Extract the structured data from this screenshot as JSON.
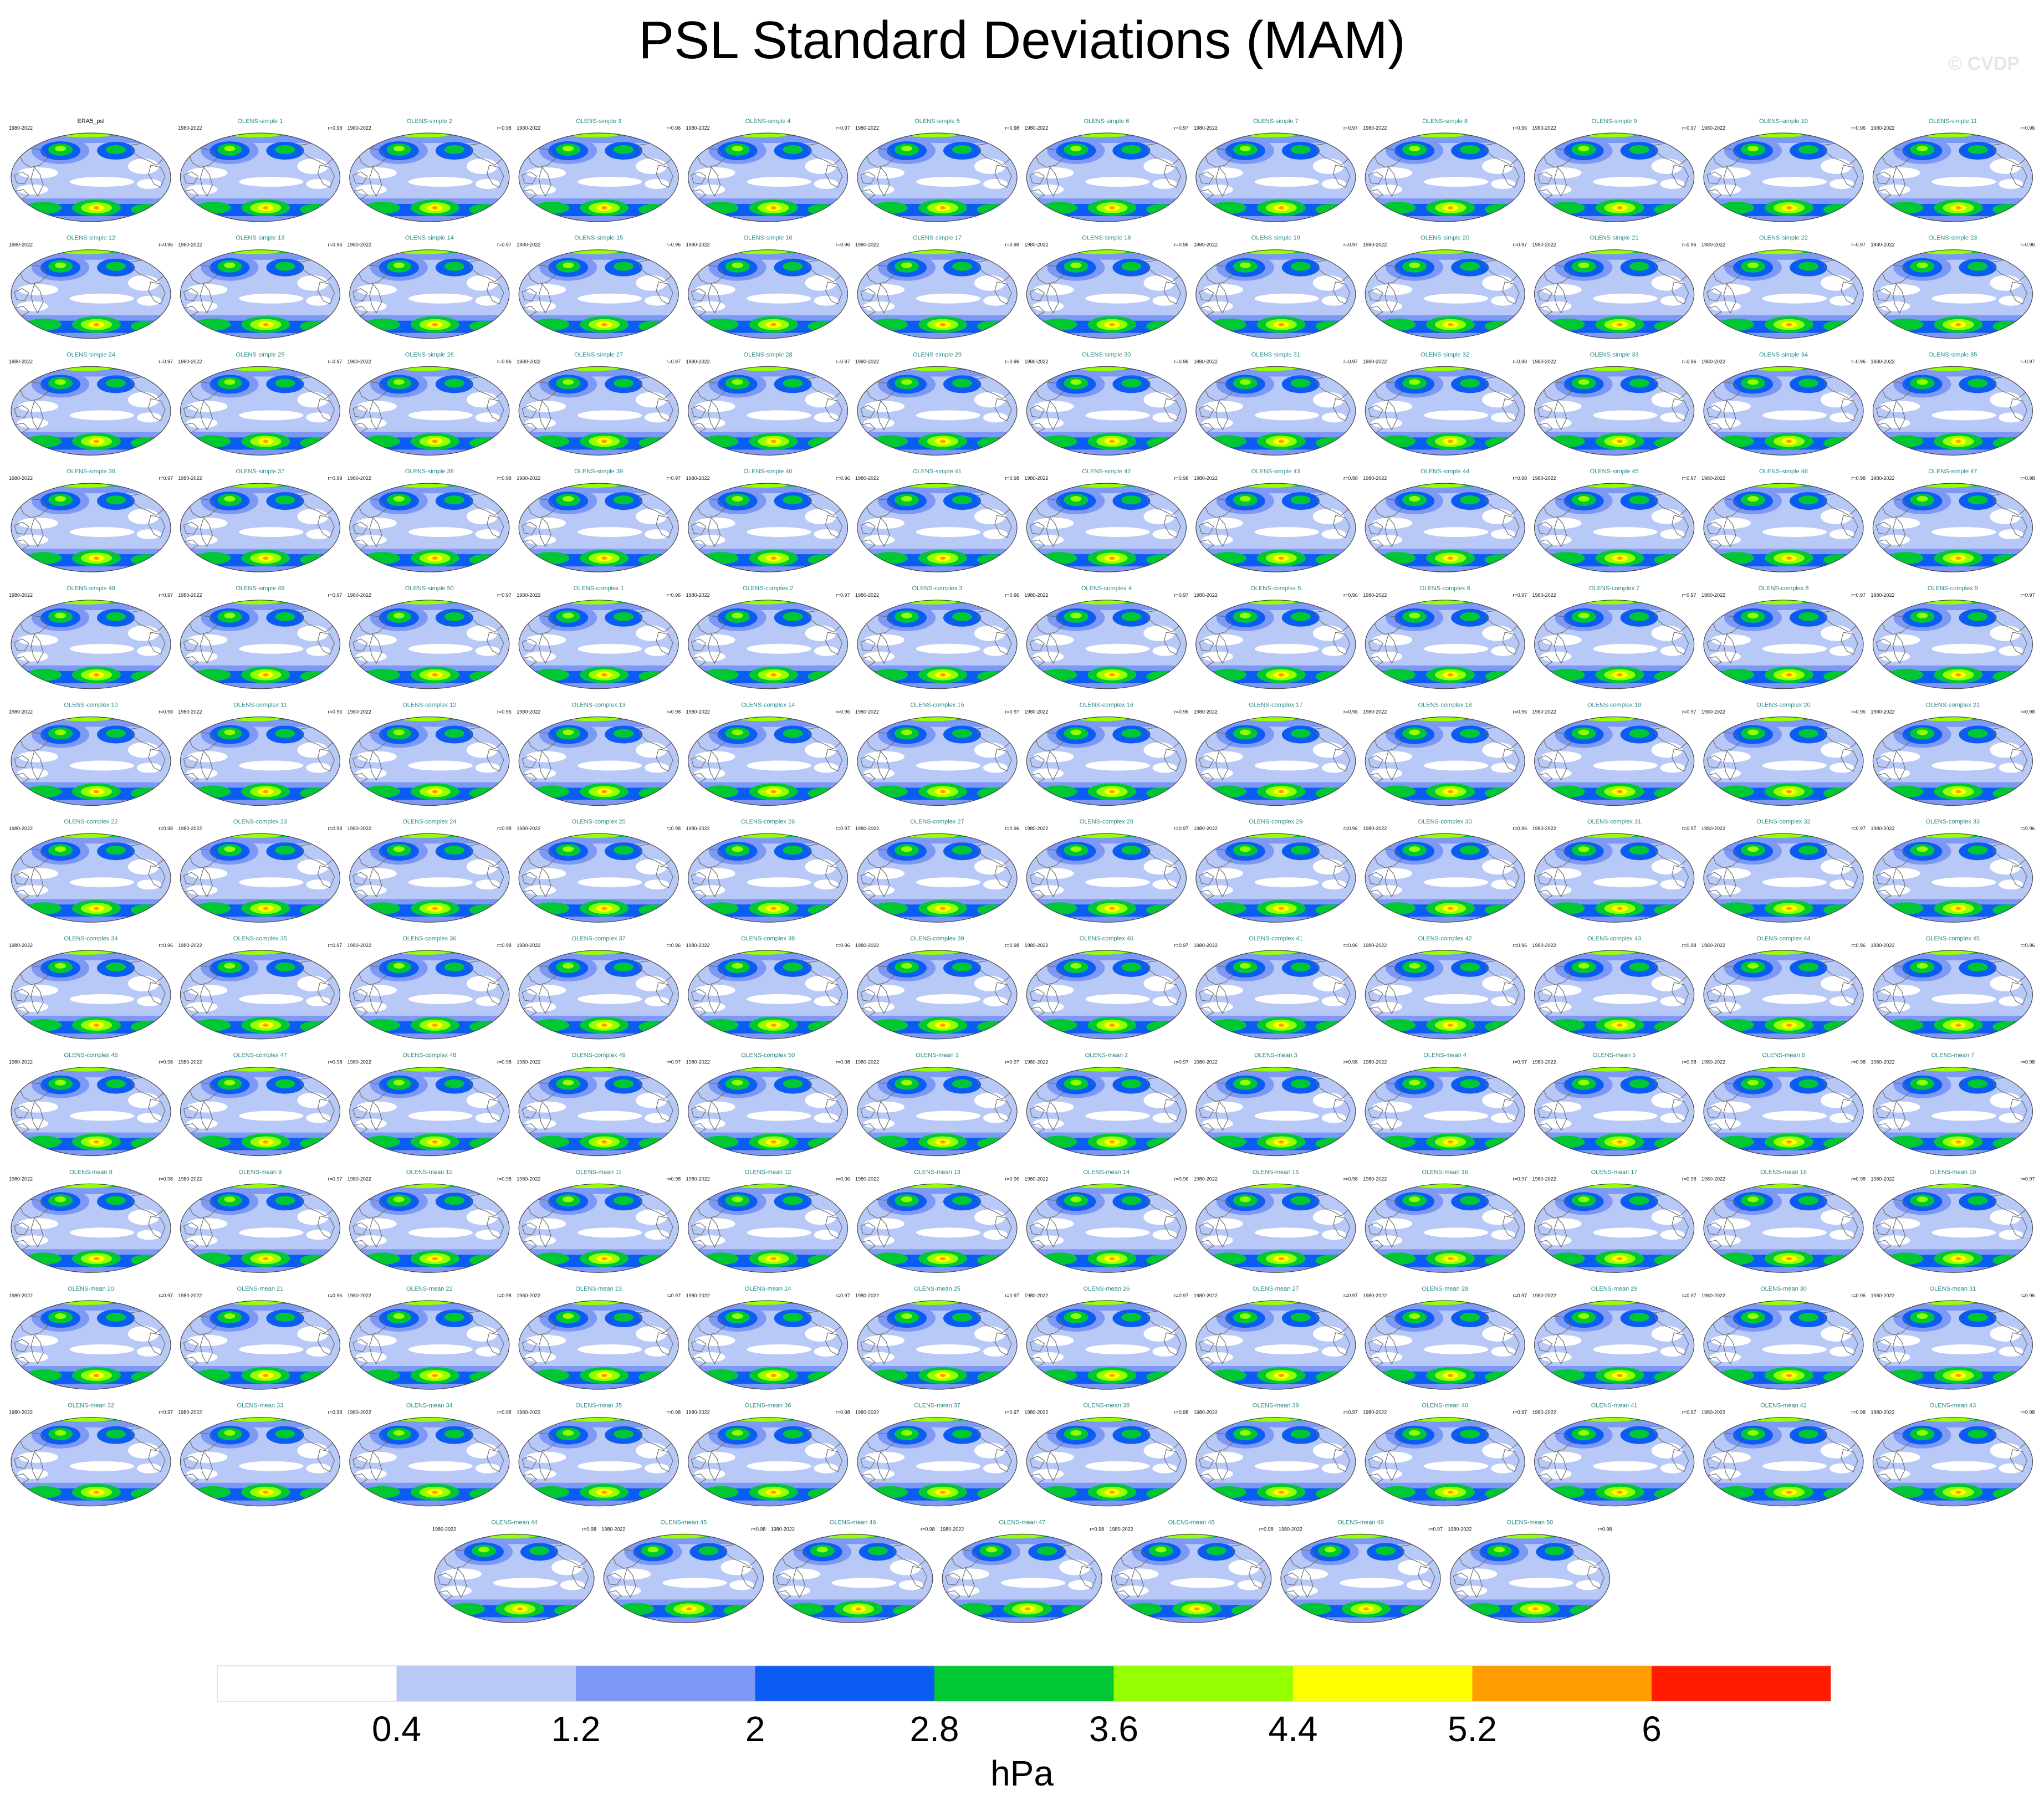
{
  "title": "PSL Standard Deviations (MAM)",
  "watermark": "© CVDP",
  "chart_data": {
    "type": "heatmap",
    "title": "PSL Standard Deviations (MAM)",
    "colorbar": {
      "levels": [
        "0.4",
        "1.2",
        "2",
        "2.8",
        "3.6",
        "4.4",
        "5.2",
        "6"
      ],
      "colors": [
        "#ffffff",
        "#b8c9f7",
        "#7d98f5",
        "#0b5cf2",
        "#00c832",
        "#96ff00",
        "#ffff00",
        "#ff9d00",
        "#ff1a00"
      ],
      "units": "hPa"
    },
    "panels": [
      {
        "title": "ERA5_psl",
        "years": "1980-2022",
        "r": ""
      },
      {
        "title": "OLENS-simple 1",
        "years": "1980-2022",
        "r": "r=0.98"
      },
      {
        "title": "OLENS-simple 2",
        "years": "1980-2022",
        "r": "r=0.98"
      },
      {
        "title": "OLENS-simple 3",
        "years": "1980-2022",
        "r": "r=0.96"
      },
      {
        "title": "OLENS-simple 4",
        "years": "1980-2022",
        "r": "r=0.97"
      },
      {
        "title": "OLENS-simple 5",
        "years": "1980-2022",
        "r": "r=0.98"
      },
      {
        "title": "OLENS-simple 6",
        "years": "1980-2022",
        "r": "r=0.97"
      },
      {
        "title": "OLENS-simple 7",
        "years": "1980-2022",
        "r": "r=0.97"
      },
      {
        "title": "OLENS-simple 8",
        "years": "1980-2022",
        "r": "r=0.96"
      },
      {
        "title": "OLENS-simple 9",
        "years": "1980-2022",
        "r": "r=0.97"
      },
      {
        "title": "OLENS-simple 10",
        "years": "1980-2022",
        "r": "r=0.96"
      },
      {
        "title": "OLENS-simple 11",
        "years": "1980-2022",
        "r": "r=0.96"
      },
      {
        "title": "OLENS-simple 12",
        "years": "1980-2022",
        "r": "r=0.96"
      },
      {
        "title": "OLENS-simple 13",
        "years": "1980-2022",
        "r": "r=0.96"
      },
      {
        "title": "OLENS-simple 14",
        "years": "1980-2022",
        "r": "r=0.97"
      },
      {
        "title": "OLENS-simple 15",
        "years": "1980-2022",
        "r": "r=0.96"
      },
      {
        "title": "OLENS-simple 16",
        "years": "1980-2022",
        "r": "r=0.96"
      },
      {
        "title": "OLENS-simple 17",
        "years": "1980-2022",
        "r": "r=0.98"
      },
      {
        "title": "OLENS-simple 18",
        "years": "1980-2022",
        "r": "r=0.96"
      },
      {
        "title": "OLENS-simple 19",
        "years": "1980-2022",
        "r": "r=0.97"
      },
      {
        "title": "OLENS-simple 20",
        "years": "1980-2022",
        "r": "r=0.97"
      },
      {
        "title": "OLENS-simple 21",
        "years": "1980-2022",
        "r": "r=0.96"
      },
      {
        "title": "OLENS-simple 22",
        "years": "1980-2022",
        "r": "r=0.97"
      },
      {
        "title": "OLENS-simple 23",
        "years": "1980-2022",
        "r": "r=0.96"
      },
      {
        "title": "OLENS-simple 24",
        "years": "1980-2022",
        "r": "r=0.97"
      },
      {
        "title": "OLENS-simple 25",
        "years": "1980-2022",
        "r": "r=0.97"
      },
      {
        "title": "OLENS-simple 26",
        "years": "1980-2022",
        "r": "r=0.96"
      },
      {
        "title": "OLENS-simple 27",
        "years": "1980-2022",
        "r": "r=0.97"
      },
      {
        "title": "OLENS-simple 28",
        "years": "1980-2022",
        "r": "r=0.97"
      },
      {
        "title": "OLENS-simple 29",
        "years": "1980-2022",
        "r": "r=0.96"
      },
      {
        "title": "OLENS-simple 30",
        "years": "1980-2022",
        "r": "r=0.98"
      },
      {
        "title": "OLENS-simple 31",
        "years": "1980-2022",
        "r": "r=0.97"
      },
      {
        "title": "OLENS-simple 32",
        "years": "1980-2022",
        "r": "r=0.98"
      },
      {
        "title": "OLENS-simple 33",
        "years": "1980-2022",
        "r": "r=0.96"
      },
      {
        "title": "OLENS-simple 34",
        "years": "1980-2022",
        "r": "r=0.96"
      },
      {
        "title": "OLENS-simple 35",
        "years": "1980-2022",
        "r": "r=0.97"
      },
      {
        "title": "OLENS-simple 36",
        "years": "1980-2022",
        "r": "r=0.97"
      },
      {
        "title": "OLENS-simple 37",
        "years": "1980-2022",
        "r": "r=0.99"
      },
      {
        "title": "OLENS-simple 38",
        "years": "1980-2022",
        "r": "r=0.98"
      },
      {
        "title": "OLENS-simple 39",
        "years": "1980-2022",
        "r": "r=0.97"
      },
      {
        "title": "OLENS-simple 40",
        "years": "1980-2022",
        "r": "r=0.96"
      },
      {
        "title": "OLENS-simple 41",
        "years": "1980-2022",
        "r": "r=0.98"
      },
      {
        "title": "OLENS-simple 42",
        "years": "1980-2022",
        "r": "r=0.98"
      },
      {
        "title": "OLENS-simple 43",
        "years": "1980-2022",
        "r": "r=0.98"
      },
      {
        "title": "OLENS-simple 44",
        "years": "1980-2022",
        "r": "r=0.98"
      },
      {
        "title": "OLENS-simple 45",
        "years": "1980-2022",
        "r": "r=0.97"
      },
      {
        "title": "OLENS-simple 46",
        "years": "1980-2022",
        "r": "r=0.98"
      },
      {
        "title": "OLENS-simple 47",
        "years": "1980-2022",
        "r": "r=0.98"
      },
      {
        "title": "OLENS-simple 48",
        "years": "1980-2022",
        "r": "r=0.97"
      },
      {
        "title": "OLENS-simple 49",
        "years": "1980-2022",
        "r": "r=0.97"
      },
      {
        "title": "OLENS-simple 50",
        "years": "1980-2022",
        "r": "r=0.97"
      },
      {
        "title": "OLENS-complex 1",
        "years": "1980-2022",
        "r": "r=0.96"
      },
      {
        "title": "OLENS-complex 2",
        "years": "1980-2022",
        "r": "r=0.97"
      },
      {
        "title": "OLENS-complex 3",
        "years": "1980-2022",
        "r": "r=0.96"
      },
      {
        "title": "OLENS-complex 4",
        "years": "1980-2022",
        "r": "r=0.97"
      },
      {
        "title": "OLENS-complex 5",
        "years": "1980-2022",
        "r": "r=0.96"
      },
      {
        "title": "OLENS-complex 6",
        "years": "1980-2022",
        "r": "r=0.97"
      },
      {
        "title": "OLENS-complex 7",
        "years": "1980-2022",
        "r": "r=0.97"
      },
      {
        "title": "OLENS-complex 8",
        "years": "1980-2022",
        "r": "r=0.97"
      },
      {
        "title": "OLENS-complex 9",
        "years": "1980-2022",
        "r": "r=0.97"
      },
      {
        "title": "OLENS-complex 10",
        "years": "1980-2022",
        "r": "r=0.98"
      },
      {
        "title": "OLENS-complex 11",
        "years": "1980-2022",
        "r": "r=0.96"
      },
      {
        "title": "OLENS-complex 12",
        "years": "1980-2022",
        "r": "r=0.96"
      },
      {
        "title": "OLENS-complex 13",
        "years": "1980-2022",
        "r": "r=0.98"
      },
      {
        "title": "OLENS-complex 14",
        "years": "1980-2022",
        "r": "r=0.96"
      },
      {
        "title": "OLENS-complex 15",
        "years": "1980-2022",
        "r": "r=0.97"
      },
      {
        "title": "OLENS-complex 16",
        "years": "1980-2022",
        "r": "r=0.96"
      },
      {
        "title": "OLENS-complex 17",
        "years": "1980-2022",
        "r": "r=0.98"
      },
      {
        "title": "OLENS-complex 18",
        "years": "1980-2022",
        "r": "r=0.96"
      },
      {
        "title": "OLENS-complex 19",
        "years": "1980-2022",
        "r": "r=0.97"
      },
      {
        "title": "OLENS-complex 20",
        "years": "1980-2022",
        "r": "r=0.96"
      },
      {
        "title": "OLENS-complex 21",
        "years": "1980-2022",
        "r": "r=0.98"
      },
      {
        "title": "OLENS-complex 22",
        "years": "1980-2022",
        "r": "r=0.98"
      },
      {
        "title": "OLENS-complex 23",
        "years": "1980-2022",
        "r": "r=0.98"
      },
      {
        "title": "OLENS-complex 24",
        "years": "1980-2022",
        "r": "r=0.98"
      },
      {
        "title": "OLENS-complex 25",
        "years": "1980-2022",
        "r": "r=0.98"
      },
      {
        "title": "OLENS-complex 26",
        "years": "1980-2022",
        "r": "r=0.97"
      },
      {
        "title": "OLENS-complex 27",
        "years": "1980-2022",
        "r": "r=0.96"
      },
      {
        "title": "OLENS-complex 28",
        "years": "1980-2022",
        "r": "r=0.97"
      },
      {
        "title": "OLENS-complex 29",
        "years": "1980-2022",
        "r": "r=0.96"
      },
      {
        "title": "OLENS-complex 30",
        "years": "1980-2022",
        "r": "r=0.96"
      },
      {
        "title": "OLENS-complex 31",
        "years": "1980-2022",
        "r": "r=0.97"
      },
      {
        "title": "OLENS-complex 32",
        "years": "1980-2022",
        "r": "r=0.97"
      },
      {
        "title": "OLENS-complex 33",
        "years": "1980-2022",
        "r": "r=0.96"
      },
      {
        "title": "OLENS-complex 34",
        "years": "1980-2022",
        "r": "r=0.96"
      },
      {
        "title": "OLENS-complex 35",
        "years": "1980-2022",
        "r": "r=0.97"
      },
      {
        "title": "OLENS-complex 36",
        "years": "1980-2022",
        "r": "r=0.98"
      },
      {
        "title": "OLENS-complex 37",
        "years": "1980-2022",
        "r": "r=0.96"
      },
      {
        "title": "OLENS-complex 38",
        "years": "1980-2022",
        "r": "r=0.96"
      },
      {
        "title": "OLENS-complex 39",
        "years": "1980-2022",
        "r": "r=0.98"
      },
      {
        "title": "OLENS-complex 40",
        "years": "1980-2022",
        "r": "r=0.97"
      },
      {
        "title": "OLENS-complex 41",
        "years": "1980-2022",
        "r": "r=0.96"
      },
      {
        "title": "OLENS-complex 42",
        "years": "1980-2022",
        "r": "r=0.96"
      },
      {
        "title": "OLENS-complex 43",
        "years": "1980-2022",
        "r": "r=0.98"
      },
      {
        "title": "OLENS-complex 44",
        "years": "1980-2022",
        "r": "r=0.96"
      },
      {
        "title": "OLENS-complex 45",
        "years": "1980-2022",
        "r": "r=0.96"
      },
      {
        "title": "OLENS-complex 46",
        "years": "1980-2022",
        "r": "r=0.98"
      },
      {
        "title": "OLENS-complex 47",
        "years": "1980-2022",
        "r": "r=0.98"
      },
      {
        "title": "OLENS-complex 48",
        "years": "1980-2022",
        "r": "r=0.98"
      },
      {
        "title": "OLENS-complex 49",
        "years": "1980-2022",
        "r": "r=0.97"
      },
      {
        "title": "OLENS-complex 50",
        "years": "1980-2022",
        "r": "r=0.98"
      },
      {
        "title": "OLENS-mean 1",
        "years": "1980-2022",
        "r": "r=0.97"
      },
      {
        "title": "OLENS-mean 2",
        "years": "1980-2022",
        "r": "r=0.97"
      },
      {
        "title": "OLENS-mean 3",
        "years": "1980-2022",
        "r": "r=0.98"
      },
      {
        "title": "OLENS-mean 4",
        "years": "1980-2022",
        "r": "r=0.97"
      },
      {
        "title": "OLENS-mean 5",
        "years": "1980-2022",
        "r": "r=0.98"
      },
      {
        "title": "OLENS-mean 6",
        "years": "1980-2022",
        "r": "r=0.98"
      },
      {
        "title": "OLENS-mean 7",
        "years": "1980-2022",
        "r": "r=0.98"
      },
      {
        "title": "OLENS-mean 8",
        "years": "1980-2022",
        "r": "r=0.98"
      },
      {
        "title": "OLENS-mean 9",
        "years": "1980-2022",
        "r": "r=0.97"
      },
      {
        "title": "OLENS-mean 10",
        "years": "1980-2022",
        "r": "r=0.98"
      },
      {
        "title": "OLENS-mean 11",
        "years": "1980-2022",
        "r": "r=0.98"
      },
      {
        "title": "OLENS-mean 12",
        "years": "1980-2022",
        "r": "r=0.96"
      },
      {
        "title": "OLENS-mean 13",
        "years": "1980-2022",
        "r": "r=0.96"
      },
      {
        "title": "OLENS-mean 14",
        "years": "1980-2022",
        "r": "r=0.96"
      },
      {
        "title": "OLENS-mean 15",
        "years": "1980-2022",
        "r": "r=0.98"
      },
      {
        "title": "OLENS-mean 16",
        "years": "1980-2022",
        "r": "r=0.97"
      },
      {
        "title": "OLENS-mean 17",
        "years": "1980-2022",
        "r": "r=0.98"
      },
      {
        "title": "OLENS-mean 18",
        "years": "1980-2022",
        "r": "r=0.98"
      },
      {
        "title": "OLENS-mean 19",
        "years": "1980-2022",
        "r": "r=0.97"
      },
      {
        "title": "OLENS-mean 20",
        "years": "1980-2022",
        "r": "r=0.97"
      },
      {
        "title": "OLENS-mean 21",
        "years": "1980-2022",
        "r": "r=0.96"
      },
      {
        "title": "OLENS-mean 22",
        "years": "1980-2022",
        "r": "r=0.98"
      },
      {
        "title": "OLENS-mean 23",
        "years": "1980-2022",
        "r": "r=0.97"
      },
      {
        "title": "OLENS-mean 24",
        "years": "1980-2022",
        "r": "r=0.97"
      },
      {
        "title": "OLENS-mean 25",
        "years": "1980-2022",
        "r": "r=0.97"
      },
      {
        "title": "OLENS-mean 26",
        "years": "1980-2022",
        "r": "r=0.97"
      },
      {
        "title": "OLENS-mean 27",
        "years": "1980-2022",
        "r": "r=0.97"
      },
      {
        "title": "OLENS-mean 28",
        "years": "1980-2022",
        "r": "r=0.97"
      },
      {
        "title": "OLENS-mean 29",
        "years": "1980-2022",
        "r": "r=0.97"
      },
      {
        "title": "OLENS-mean 30",
        "years": "1980-2022",
        "r": "r=0.96"
      },
      {
        "title": "OLENS-mean 31",
        "years": "1980-2022",
        "r": "r=0.96"
      },
      {
        "title": "OLENS-mean 32",
        "years": "1980-2022",
        "r": "r=0.97"
      },
      {
        "title": "OLENS-mean 33",
        "years": "1980-2022",
        "r": "r=0.98"
      },
      {
        "title": "OLENS-mean 34",
        "years": "1980-2022",
        "r": "r=0.98"
      },
      {
        "title": "OLENS-mean 35",
        "years": "1980-2022",
        "r": "r=0.98"
      },
      {
        "title": "OLENS-mean 36",
        "years": "1980-2022",
        "r": "r=0.98"
      },
      {
        "title": "OLENS-mean 37",
        "years": "1980-2022",
        "r": "r=0.97"
      },
      {
        "title": "OLENS-mean 38",
        "years": "1980-2022",
        "r": "r=0.98"
      },
      {
        "title": "OLENS-mean 39",
        "years": "1980-2022",
        "r": "r=0.97"
      },
      {
        "title": "OLENS-mean 40",
        "years": "1980-2022",
        "r": "r=0.97"
      },
      {
        "title": "OLENS-mean 41",
        "years": "1980-2022",
        "r": "r=0.97"
      },
      {
        "title": "OLENS-mean 42",
        "years": "1980-2022",
        "r": "r=0.98"
      },
      {
        "title": "OLENS-mean 43",
        "years": "1980-2022",
        "r": "r=0.98"
      },
      {
        "title": "OLENS-mean 44",
        "years": "1980-2022",
        "r": "r=0.98"
      },
      {
        "title": "OLENS-mean 45",
        "years": "1980-2022",
        "r": "r=0.98"
      },
      {
        "title": "OLENS-mean 46",
        "years": "1980-2022",
        "r": "r=0.98"
      },
      {
        "title": "OLENS-mean 47",
        "years": "1980-2022",
        "r": "r=0.98"
      },
      {
        "title": "OLENS-mean 48",
        "years": "1980-2022",
        "r": "r=0.98"
      },
      {
        "title": "OLENS-mean 49",
        "years": "1980-2022",
        "r": "r=0.97"
      },
      {
        "title": "OLENS-mean 50",
        "years": "1980-2022",
        "r": "r=0.98"
      }
    ]
  }
}
